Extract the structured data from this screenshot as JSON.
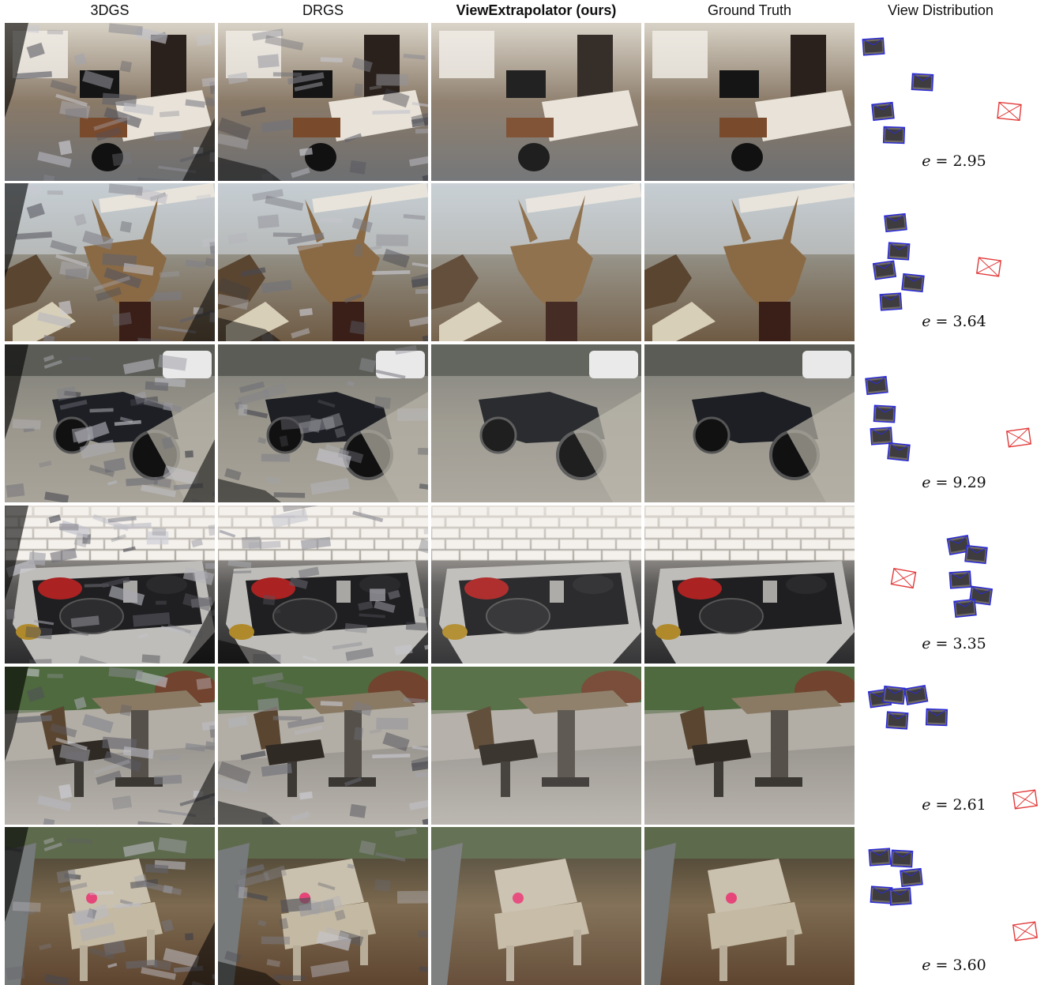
{
  "columns": {
    "c3dgs": "3DGS",
    "drgs": "DRGS",
    "ours": "ViewExtrapolator (ours)",
    "gt": "Ground Truth",
    "dist": "View Distribution"
  },
  "rows": [
    {
      "scene": "living-room",
      "e_var": "e",
      "e_eq": "= 2.95"
    },
    {
      "scene": "triceratops",
      "e_var": "e",
      "e_eq": "= 3.64"
    },
    {
      "scene": "motorcycle",
      "e_var": "e",
      "e_eq": "= 9.29"
    },
    {
      "scene": "kitchen-stove",
      "e_var": "e",
      "e_eq": "= 3.35"
    },
    {
      "scene": "chess-table",
      "e_var": "e",
      "e_eq": "= 2.61"
    },
    {
      "scene": "park-bench",
      "e_var": "e",
      "e_eq": "= 3.60"
    }
  ],
  "colors": {
    "train_camera": "#2b2bd6",
    "test_camera": "#e23a3a"
  }
}
